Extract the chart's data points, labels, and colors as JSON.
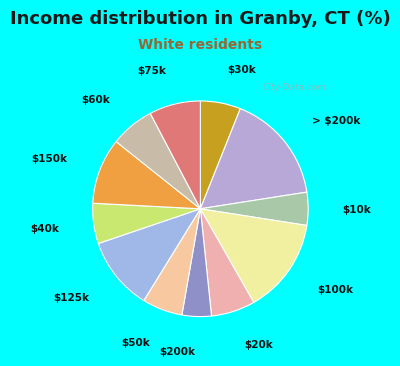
{
  "title": "Income distribution in Granby, CT (%)",
  "subtitle": "White residents",
  "bg_color": "#00ffff",
  "chart_bg": "#dff2ec",
  "labels": [
    "$30k",
    "> $200k",
    "$10k",
    "$100k",
    "$20k",
    "$200k",
    "$50k",
    "$125k",
    "$40k",
    "$150k",
    "$60k",
    "$75k"
  ],
  "sizes": [
    5.5,
    15.0,
    4.5,
    13.0,
    6.0,
    4.0,
    5.5,
    10.0,
    5.5,
    9.0,
    6.0,
    7.0
  ],
  "colors": [
    "#c8a020",
    "#b8a8d8",
    "#a8c8a8",
    "#f0f0a0",
    "#f0b0b0",
    "#9090c8",
    "#f8c8a0",
    "#a0b8e8",
    "#c8e870",
    "#f0a040",
    "#c8bca8",
    "#e07878"
  ],
  "startangle": 90,
  "label_fontsize": 7.5,
  "title_fontsize": 13,
  "subtitle_fontsize": 10,
  "title_color": "#1a1a1a",
  "subtitle_color": "#996633",
  "watermark": "City-Data.com"
}
